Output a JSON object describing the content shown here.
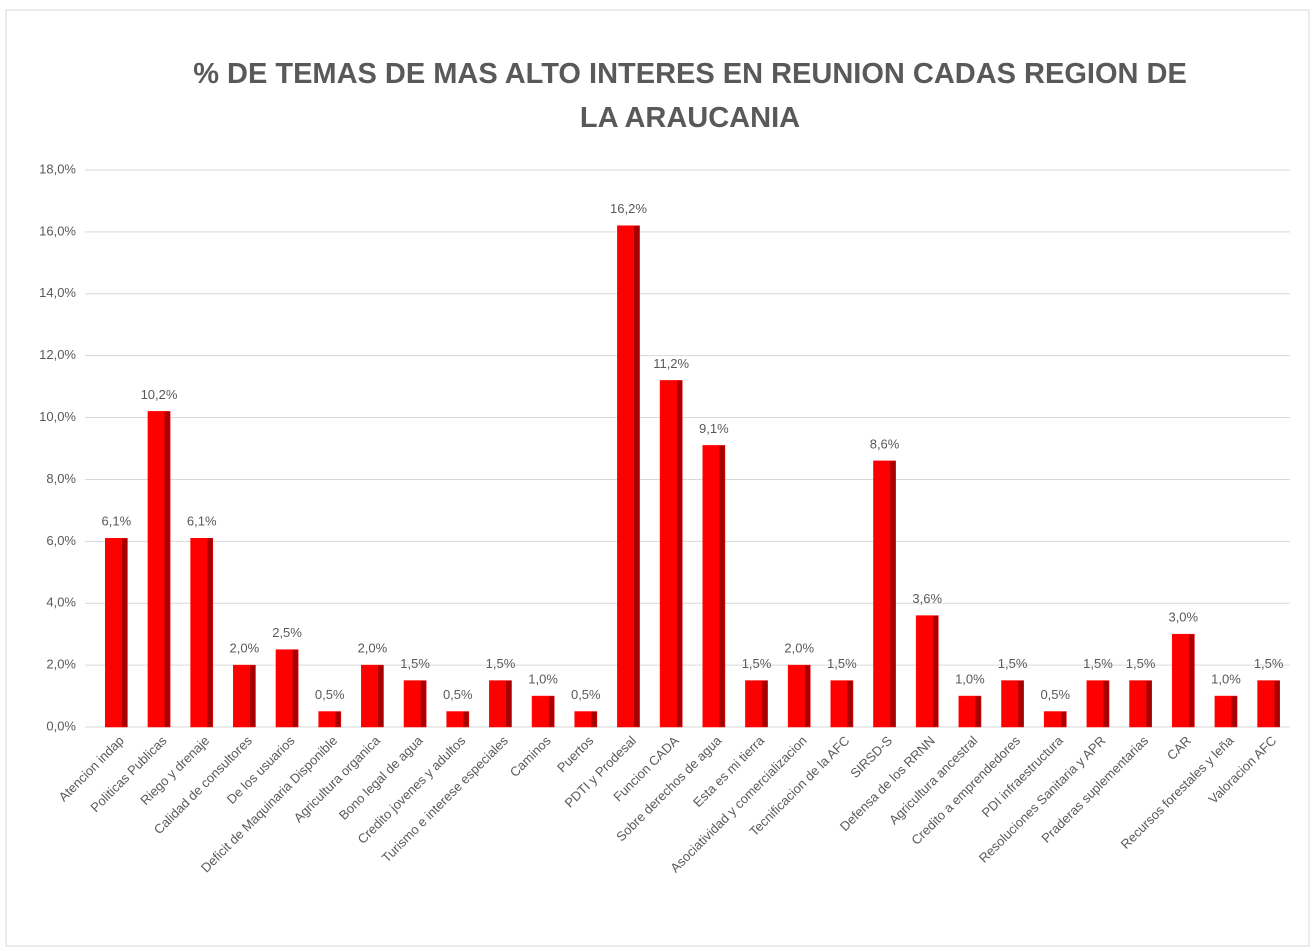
{
  "chart_data": {
    "type": "bar",
    "title": "% DE TEMAS DE MAS ALTO INTERES EN REUNION CADAS REGION DE LA ARAUCANIA",
    "categories": [
      "Atencion indap",
      "Politicas Publicas",
      "Riego y drenaje",
      "Calidad de consultores",
      "De los usuarios",
      "Deficit de Maquinaria Disponible",
      "Agricultura organica",
      "Bono legal de agua",
      "Credito jovenes y adultos",
      "Turismo e interese especiales",
      "Caminos",
      "Puertos",
      "PDTI y Prodesal",
      "Funcion CADA",
      "Sobre derechos de agua",
      "Esta es mi tierra",
      "Asociatividad y comercializacion",
      "Tecnificacion de la AFC",
      "SIRSD-S",
      "Defensa de los RRNN",
      "Agricultura ancestral",
      "Credito a emprendedores",
      "PDI infraestructura",
      "Resoluciones Sanitaria y APR",
      "Praderas suplementarias",
      "CAR",
      "Recursos forestales y leña",
      "Valoracion AFC"
    ],
    "values": [
      6.1,
      10.2,
      6.1,
      2.0,
      2.5,
      0.5,
      2.0,
      1.5,
      0.5,
      1.5,
      1.0,
      0.5,
      16.2,
      11.2,
      9.1,
      1.5,
      2.0,
      1.5,
      8.6,
      3.6,
      1.0,
      1.5,
      0.5,
      1.5,
      1.5,
      3.0,
      1.0,
      1.5
    ],
    "value_labels": [
      "6,1%",
      "10,2%",
      "6,1%",
      "2,0%",
      "2,5%",
      "0,5%",
      "2,0%",
      "1,5%",
      "0,5%",
      "1,5%",
      "1,0%",
      "0,5%",
      "16,2%",
      "11,2%",
      "9,1%",
      "1,5%",
      "2,0%",
      "1,5%",
      "8,6%",
      "3,6%",
      "1,0%",
      "1,5%",
      "0,5%",
      "1,5%",
      "1,5%",
      "3,0%",
      "1,0%",
      "1,5%"
    ],
    "color": "#ff0000",
    "ylim": [
      0,
      18
    ],
    "yticks": [
      {
        "value": 0,
        "label": "0,0%"
      },
      {
        "value": 2,
        "label": "2,0%"
      },
      {
        "value": 4,
        "label": "4,0%"
      },
      {
        "value": 6,
        "label": "6,0%"
      },
      {
        "value": 8,
        "label": "8,0%"
      },
      {
        "value": 10,
        "label": "10,0%"
      },
      {
        "value": 12,
        "label": "12,0%"
      },
      {
        "value": 14,
        "label": "14,0%"
      },
      {
        "value": 16,
        "label": "16,0%"
      },
      {
        "value": 18,
        "label": "18,0%"
      }
    ],
    "grid": true
  }
}
